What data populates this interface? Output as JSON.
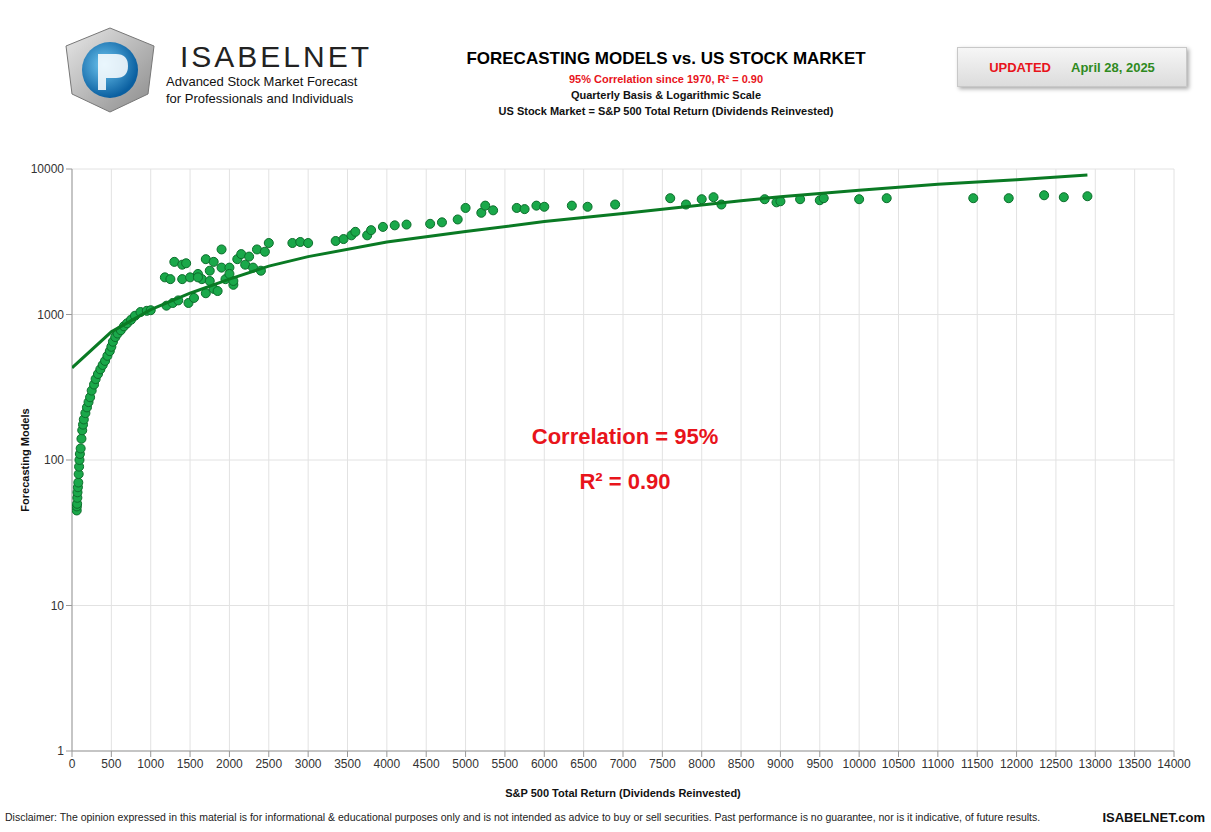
{
  "chart_data": {
    "type": "scatter",
    "title": "FORECASTING MODELS vs. US STOCK MARKET",
    "subtitle": [
      "95% Correlation since 1970, R² = 0.90",
      "Quarterly Basis & Logarithmic Scale",
      "US Stock Market = S&P 500 Total Return (Dividends Reinvested)"
    ],
    "logo_text": "ISABELNET",
    "logo_subtitle": [
      "Advanced Stock Market Forecast",
      "for Professionals and Individuals"
    ],
    "updated_label": "UPDATED",
    "updated_date": "April 28, 2025",
    "annotations": [
      "Correlation = 95%",
      "R² = 0.90"
    ],
    "x_label": "S&P 500 Total Return (Dividends Reinvested)",
    "y_label": "Forecasting Models",
    "disclaimer": "Disclaimer: The opinion expressed in this material is for informational & educational purposes only and is not intended as advice to buy or sell securities. Past performance is no guarantee, nor is it indicative, of future results.",
    "website": "ISABELNET.com",
    "log": "y",
    "grid": true,
    "xlim": [
      0,
      14000
    ],
    "xticks": [
      0,
      500,
      1000,
      1500,
      2000,
      2500,
      3000,
      3500,
      4000,
      4500,
      5000,
      5500,
      6000,
      6500,
      7000,
      7500,
      8000,
      8500,
      9000,
      9500,
      10000,
      10500,
      11000,
      11500,
      12000,
      12500,
      13000,
      13500,
      14000
    ],
    "ylim": [
      1,
      10000
    ],
    "yticks": [
      1,
      10,
      100,
      1000,
      10000
    ],
    "series": [
      {
        "type": "scatter",
        "color": "#1aa84a",
        "marker": "circle",
        "line_style": "none",
        "x": [
          60,
          62,
          65,
          68,
          70,
          75,
          80,
          85,
          90,
          95,
          100,
          110,
          120,
          130,
          140,
          150,
          170,
          190,
          210,
          230,
          250,
          280,
          300,
          330,
          360,
          390,
          420,
          450,
          480,
          500,
          520,
          550,
          580,
          620,
          660,
          700,
          750,
          800,
          870,
          950,
          1000,
          1180,
          1250,
          1300,
          1400,
          1450,
          1200,
          1280,
          1350,
          1400,
          1500,
          1480,
          1550,
          1600,
          1650,
          1700,
          1700,
          1750,
          1800,
          1800,
          1850,
          1900,
          1900,
          1950,
          2000,
          2050,
          2050,
          2100,
          2150,
          2200,
          2250,
          2300,
          2350,
          2400,
          2450,
          2500,
          1600,
          1750,
          2000,
          2800,
          2900,
          3000,
          3350,
          3450,
          3550,
          3600,
          3750,
          3800,
          3950,
          4100,
          4250,
          4550,
          4700,
          4900,
          5000,
          5200,
          5250,
          5350,
          5650,
          5750,
          5900,
          6000,
          6350,
          6550,
          6900,
          7600,
          7800,
          8000,
          8150,
          8250,
          8800,
          8950,
          9000,
          9250,
          9500,
          9550,
          10000,
          10350,
          11450,
          11900,
          12350,
          12600,
          12900
        ],
        "values": [
          45,
          48,
          50,
          55,
          60,
          65,
          70,
          80,
          90,
          100,
          110,
          120,
          140,
          160,
          175,
          190,
          210,
          230,
          250,
          270,
          300,
          330,
          360,
          390,
          420,
          450,
          480,
          520,
          560,
          600,
          650,
          700,
          740,
          780,
          830,
          870,
          920,
          980,
          1040,
          1060,
          1070,
          1800,
          1750,
          2300,
          2200,
          2250,
          1150,
          1200,
          1250,
          1750,
          1800,
          1200,
          1300,
          1900,
          1750,
          2400,
          1400,
          2000,
          2300,
          1500,
          1450,
          2800,
          2100,
          1750,
          2100,
          1600,
          1700,
          2400,
          2600,
          2200,
          2500,
          2100,
          2800,
          2000,
          2700,
          3100,
          1800,
          1700,
          1900,
          3100,
          3150,
          3100,
          3200,
          3300,
          3500,
          3700,
          3500,
          3800,
          4000,
          4100,
          4150,
          4200,
          4300,
          4500,
          5400,
          5000,
          5600,
          5200,
          5400,
          5300,
          5600,
          5500,
          5600,
          5500,
          5700,
          6300,
          5700,
          6200,
          6400,
          5700,
          6200,
          5900,
          6000,
          6200,
          6100,
          6300,
          6200,
          6300,
          6300,
          6300,
          6600,
          6400,
          6500
        ]
      },
      {
        "type": "line",
        "color": "#0a7a24",
        "marker": "none",
        "line_style": "solid",
        "x": [
          0,
          500,
          1000,
          1500,
          2000,
          2500,
          3000,
          4000,
          5000,
          6000,
          7000,
          8000,
          8500,
          9000,
          10000,
          11000,
          12000,
          12900
        ],
        "values": [
          430,
          760,
          1080,
          1400,
          1750,
          2150,
          2500,
          3150,
          3720,
          4350,
          4950,
          5650,
          6050,
          6450,
          7150,
          7850,
          8450,
          9100
        ]
      }
    ]
  }
}
